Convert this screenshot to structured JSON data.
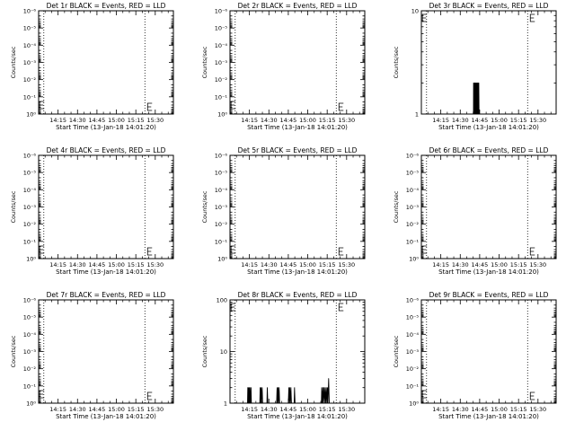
{
  "figure": {
    "background": "#ffffff",
    "line_color": "#000000"
  },
  "x_axis": {
    "label": "Start Time (13-Jan-18 14:01:20)",
    "ticks": [
      "14:15",
      "14:30",
      "14:45",
      "15:00",
      "15:15",
      "15:30"
    ],
    "tick_minutes": [
      15,
      30,
      45,
      60,
      75,
      90
    ],
    "range_minutes": [
      0,
      104
    ],
    "dotted_lines_minutes": [
      4,
      82
    ]
  },
  "chart_data": [
    {
      "type": "line",
      "title": "Det 1r BLACK = Events, RED = LLD",
      "ylabel": "Counts/sec",
      "yscale": "log",
      "ylim": [
        1,
        1e-06
      ],
      "ytick_labels": [
        "10⁰",
        "10⁻¹",
        "10⁻²",
        "10⁻³",
        "10⁻⁴",
        "10⁻⁵",
        "10⁻⁶"
      ],
      "series": [
        {
          "values": []
        },
        {
          "color": "#ff0000",
          "values": []
        }
      ]
    },
    {
      "type": "line",
      "title": "Det 2r BLACK = Events, RED = LLD",
      "ylabel": "Counts/sec",
      "yscale": "log",
      "ylim": [
        1,
        1e-06
      ],
      "ytick_labels": [
        "10⁰",
        "10⁻¹",
        "10⁻²",
        "10⁻³",
        "10⁻⁴",
        "10⁻⁵",
        "10⁻⁶"
      ],
      "series": [
        {
          "values": []
        },
        {
          "color": "#ff0000",
          "values": []
        }
      ]
    },
    {
      "type": "line",
      "title": "Det 3r BLACK = Events, RED = LLD",
      "ylabel": "Counts/sec",
      "yscale": "log",
      "ylim": [
        1,
        10
      ],
      "ytick_labels": [
        "1",
        "10"
      ],
      "series": [
        {
          "values": [
            [
              40.2,
              1
            ],
            [
              40.3,
              2
            ],
            [
              40.5,
              1
            ],
            [
              40.6,
              2
            ],
            [
              40.8,
              1
            ],
            [
              41.0,
              2
            ],
            [
              41.1,
              1
            ],
            [
              41.3,
              2
            ],
            [
              41.5,
              1
            ],
            [
              41.6,
              2
            ],
            [
              41.8,
              1
            ],
            [
              42.0,
              2
            ],
            [
              42.2,
              1
            ],
            [
              42.3,
              2
            ],
            [
              42.5,
              1
            ],
            [
              42.7,
              2
            ],
            [
              42.9,
              1
            ],
            [
              43.1,
              2
            ],
            [
              43.3,
              1
            ],
            [
              43.5,
              2
            ],
            [
              43.7,
              1
            ],
            [
              43.9,
              2
            ],
            [
              44.1,
              1
            ],
            [
              44.3,
              2
            ],
            [
              44.5,
              1
            ]
          ]
        },
        {
          "color": "#ff0000",
          "values": []
        }
      ]
    },
    {
      "type": "line",
      "title": "Det 4r BLACK = Events, RED = LLD",
      "ylabel": "Counts/sec",
      "yscale": "log",
      "ylim": [
        1,
        1e-06
      ],
      "ytick_labels": [
        "10⁰",
        "10⁻¹",
        "10⁻²",
        "10⁻³",
        "10⁻⁴",
        "10⁻⁵",
        "10⁻⁶"
      ],
      "series": [
        {
          "values": []
        },
        {
          "color": "#ff0000",
          "values": []
        }
      ]
    },
    {
      "type": "line",
      "title": "Det 5r BLACK = Events, RED = LLD",
      "ylabel": "Counts/sec",
      "yscale": "log",
      "ylim": [
        1,
        1e-06
      ],
      "ytick_labels": [
        "10⁰",
        "10⁻¹",
        "10⁻²",
        "10⁻³",
        "10⁻⁴",
        "10⁻⁵",
        "10⁻⁶"
      ],
      "series": [
        {
          "values": []
        },
        {
          "color": "#ff0000",
          "values": []
        }
      ]
    },
    {
      "type": "line",
      "title": "Det 6r BLACK = Events, RED = LLD",
      "ylabel": "Counts/sec",
      "yscale": "log",
      "ylim": [
        1,
        1e-06
      ],
      "ytick_labels": [
        "10⁰",
        "10⁻¹",
        "10⁻²",
        "10⁻³",
        "10⁻⁴",
        "10⁻⁵",
        "10⁻⁶"
      ],
      "series": [
        {
          "values": []
        },
        {
          "color": "#ff0000",
          "values": []
        }
      ]
    },
    {
      "type": "line",
      "title": "Det 7r BLACK = Events, RED = LLD",
      "ylabel": "Counts/sec",
      "yscale": "log",
      "ylim": [
        1,
        1e-06
      ],
      "ytick_labels": [
        "10⁰",
        "10⁻¹",
        "10⁻²",
        "10⁻³",
        "10⁻⁴",
        "10⁻⁵",
        "10⁻⁶"
      ],
      "series": [
        {
          "values": []
        },
        {
          "color": "#ff0000",
          "values": []
        }
      ]
    },
    {
      "type": "line",
      "title": "Det 8r BLACK = Events, RED = LLD",
      "ylabel": "Counts/sec",
      "yscale": "log",
      "ylim": [
        1,
        100
      ],
      "ytick_labels": [
        "1",
        "10",
        "100"
      ],
      "series": [
        {
          "values": [
            [
              13.5,
              1
            ],
            [
              13.7,
              2
            ],
            [
              13.9,
              1
            ],
            [
              14.2,
              2
            ],
            [
              14.5,
              1
            ],
            [
              14.8,
              2
            ],
            [
              15.1,
              1
            ],
            [
              15.4,
              2
            ],
            [
              15.8,
              1
            ],
            [
              16.2,
              2
            ],
            [
              16.5,
              1
            ],
            [
              23.0,
              1
            ],
            [
              23.3,
              2
            ],
            [
              23.6,
              1
            ],
            [
              24.0,
              2
            ],
            [
              24.3,
              1
            ],
            [
              24.8,
              2
            ],
            [
              25.2,
              1
            ],
            [
              28.5,
              1
            ],
            [
              28.8,
              2
            ],
            [
              29.2,
              1
            ],
            [
              36.0,
              1
            ],
            [
              36.3,
              2
            ],
            [
              36.7,
              1
            ],
            [
              37.1,
              2
            ],
            [
              37.5,
              1
            ],
            [
              37.9,
              2
            ],
            [
              38.3,
              1
            ],
            [
              45.0,
              1
            ],
            [
              45.4,
              2
            ],
            [
              45.8,
              1
            ],
            [
              46.2,
              2
            ],
            [
              46.6,
              1
            ],
            [
              47.0,
              2
            ],
            [
              47.4,
              1
            ],
            [
              49.5,
              1
            ],
            [
              49.8,
              2
            ],
            [
              50.2,
              1
            ],
            [
              70.5,
              1
            ],
            [
              70.8,
              2
            ],
            [
              71.2,
              1
            ],
            [
              71.6,
              2
            ],
            [
              72.0,
              1
            ],
            [
              72.5,
              2
            ],
            [
              73.0,
              1
            ],
            [
              73.4,
              2
            ],
            [
              73.9,
              1
            ],
            [
              74.3,
              2
            ],
            [
              74.8,
              1
            ],
            [
              75.2,
              2
            ],
            [
              75.6,
              1
            ],
            [
              76.1,
              3
            ],
            [
              76.6,
              1
            ]
          ]
        },
        {
          "color": "#ff0000",
          "values": []
        }
      ]
    },
    {
      "type": "line",
      "title": "Det 9r BLACK = Events, RED = LLD",
      "ylabel": "Counts/sec",
      "yscale": "log",
      "ylim": [
        1,
        1e-06
      ],
      "ytick_labels": [
        "10⁰",
        "10⁻¹",
        "10⁻²",
        "10⁻³",
        "10⁻⁴",
        "10⁻⁵",
        "10⁻⁶"
      ],
      "series": [
        {
          "values": []
        },
        {
          "color": "#ff0000",
          "values": []
        }
      ]
    }
  ]
}
